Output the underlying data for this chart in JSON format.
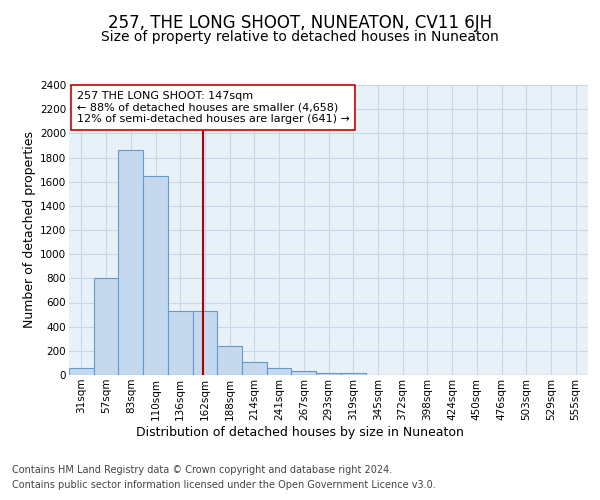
{
  "title": "257, THE LONG SHOOT, NUNEATON, CV11 6JH",
  "subtitle": "Size of property relative to detached houses in Nuneaton",
  "xlabel": "Distribution of detached houses by size in Nuneaton",
  "ylabel": "Number of detached properties",
  "footer_line1": "Contains HM Land Registry data © Crown copyright and database right 2024.",
  "footer_line2": "Contains public sector information licensed under the Open Government Licence v3.0.",
  "bar_labels": [
    "31sqm",
    "57sqm",
    "83sqm",
    "110sqm",
    "136sqm",
    "162sqm",
    "188sqm",
    "214sqm",
    "241sqm",
    "267sqm",
    "293sqm",
    "319sqm",
    "345sqm",
    "372sqm",
    "398sqm",
    "424sqm",
    "450sqm",
    "476sqm",
    "503sqm",
    "529sqm",
    "555sqm"
  ],
  "bar_values": [
    55,
    800,
    1860,
    1650,
    530,
    530,
    240,
    110,
    55,
    35,
    20,
    15,
    0,
    0,
    0,
    0,
    0,
    0,
    0,
    0,
    0
  ],
  "bar_color": "#c5d9ee",
  "bar_edge_color": "#6699cc",
  "vline_color": "#aa0000",
  "annotation_text": "257 THE LONG SHOOT: 147sqm\n← 88% of detached houses are smaller (4,658)\n12% of semi-detached houses are larger (641) →",
  "ylim": [
    0,
    2400
  ],
  "yticks": [
    0,
    200,
    400,
    600,
    800,
    1000,
    1200,
    1400,
    1600,
    1800,
    2000,
    2200,
    2400
  ],
  "grid_color": "#c8d8e8",
  "bg_color": "#e8f0f8",
  "title_fontsize": 12,
  "subtitle_fontsize": 10,
  "axis_label_fontsize": 9,
  "tick_fontsize": 7.5,
  "footer_fontsize": 7,
  "annotation_fontsize": 8
}
